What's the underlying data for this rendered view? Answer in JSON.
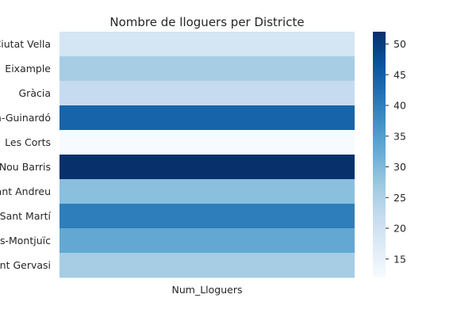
{
  "chart_data": {
    "type": "heatmap",
    "title": "Nombre de lloguers per Districte",
    "xlabel": "Num_Lloguers",
    "ylabel": "",
    "columns": [
      "Num_Lloguers"
    ],
    "rows": [
      "Ciutat Vella",
      "Eixample",
      "Gràcia",
      "Horta-Guinardó",
      "Les Corts",
      "Nou Barris",
      "Sant Andreu",
      "Sant Martí",
      "Sants-Montjuïc",
      "Sarrià-Sant Gervasi"
    ],
    "values": [
      19,
      26,
      22,
      44,
      12,
      52,
      29,
      40,
      33,
      26
    ],
    "colormap": "Blues",
    "colorbar": {
      "range": [
        12,
        52
      ],
      "ticks": [
        15,
        20,
        25,
        30,
        35,
        40,
        45,
        50
      ]
    },
    "grid": false,
    "legend": "colorbar-right"
  }
}
